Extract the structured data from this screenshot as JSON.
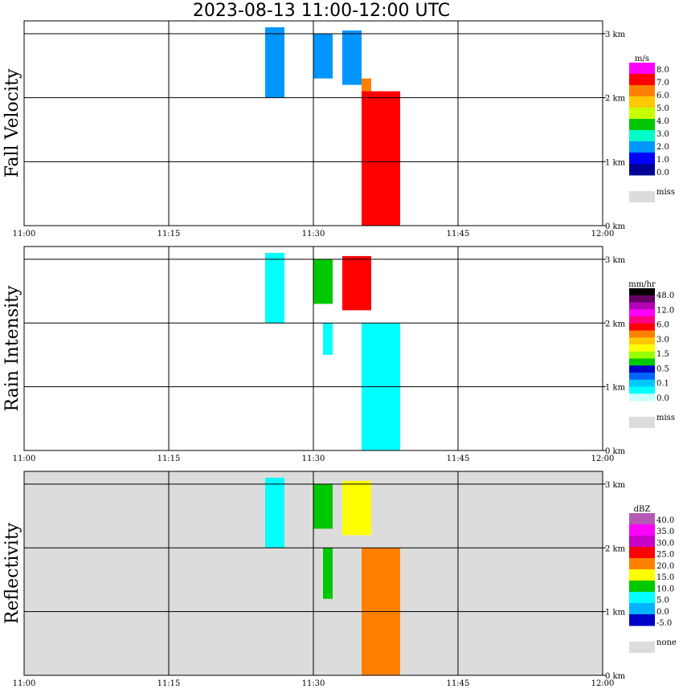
{
  "title": "2023-08-13  11:00-12:00 UTC",
  "chart_data": [
    {
      "type": "heatmap",
      "ylabel": "Fall Velocity",
      "x_ticks": [
        "11:00",
        "11:15",
        "11:30",
        "11:45",
        "12:00"
      ],
      "y_ticks": [
        "0 km",
        "1 km",
        "2 km",
        "3 km"
      ],
      "xlim": [
        "11:00",
        "12:00"
      ],
      "ylim_km": [
        0,
        3.2
      ],
      "background": "#ffffff",
      "legend": {
        "unit": "m/s",
        "labels": [
          "8.0",
          "7.0",
          "6.0",
          "5.0",
          "4.0",
          "3.0",
          "2.0",
          "1.0",
          "0.0"
        ],
        "colors": [
          "#ff00ff",
          "#ff0000",
          "#ff8000",
          "#ffc800",
          "#c8ff00",
          "#00c800",
          "#00ffc8",
          "#0096ff",
          "#0000ff",
          "#000096"
        ],
        "missing_label": "miss",
        "missing_color": "#dcdcdc"
      },
      "features": [
        {
          "x_start": "11:25",
          "x_end": "11:27",
          "y_top_km": 3.1,
          "y_bottom_km": 2.0,
          "color": "#0096ff"
        },
        {
          "x_start": "11:30",
          "x_end": "11:32",
          "y_top_km": 3.0,
          "y_bottom_km": 2.3,
          "color": "#0096ff"
        },
        {
          "x_start": "11:33",
          "x_end": "11:35",
          "y_top_km": 3.05,
          "y_bottom_km": 2.2,
          "color": "#0096ff"
        },
        {
          "x_start": "11:35",
          "x_end": "11:36",
          "y_top_km": 2.3,
          "y_bottom_km": 1.2,
          "color": "#ff8000"
        },
        {
          "x_start": "11:35",
          "x_end": "11:39",
          "y_top_km": 2.1,
          "y_bottom_km": 0.0,
          "color": "#ff0000"
        }
      ]
    },
    {
      "type": "heatmap",
      "ylabel": "Rain Intensity",
      "x_ticks": [
        "11:00",
        "11:15",
        "11:30",
        "11:45",
        "12:00"
      ],
      "y_ticks": [
        "0 km",
        "1 km",
        "2 km",
        "3 km"
      ],
      "xlim": [
        "11:00",
        "12:00"
      ],
      "ylim_km": [
        0,
        3.2
      ],
      "background": "#ffffff",
      "legend": {
        "unit": "mm/hr",
        "labels": [
          "48.0",
          "12.0",
          "6.0",
          "3.0",
          "1.5",
          "0.5",
          "0.1",
          "0.0"
        ],
        "colors": [
          "#000000",
          "#640064",
          "#b400b4",
          "#ff00ff",
          "#ff0080",
          "#ff0000",
          "#ff8000",
          "#ffc800",
          "#ffff00",
          "#96ff00",
          "#00c800",
          "#0000c8",
          "#0064ff",
          "#00c8ff",
          "#00ffff",
          "#c8ffff"
        ],
        "missing_label": "miss",
        "missing_color": "#dcdcdc"
      },
      "features": [
        {
          "x_start": "11:25",
          "x_end": "11:27",
          "y_top_km": 3.1,
          "y_bottom_km": 2.0,
          "color": "#00ffff"
        },
        {
          "x_start": "11:30",
          "x_end": "11:32",
          "y_top_km": 3.0,
          "y_bottom_km": 2.3,
          "color": "#00c800"
        },
        {
          "x_start": "11:33",
          "x_end": "11:36",
          "y_top_km": 3.05,
          "y_bottom_km": 2.2,
          "color": "#ff0000"
        },
        {
          "x_start": "11:31",
          "x_end": "11:32",
          "y_top_km": 2.0,
          "y_bottom_km": 1.5,
          "color": "#00ffff"
        },
        {
          "x_start": "11:35",
          "x_end": "11:39",
          "y_top_km": 2.0,
          "y_bottom_km": 0.0,
          "color": "#00ffff"
        }
      ]
    },
    {
      "type": "heatmap",
      "ylabel": "Reflectivity",
      "x_ticks": [
        "11:00",
        "11:15",
        "11:30",
        "11:45",
        "12:00"
      ],
      "y_ticks": [
        "0 km",
        "1 km",
        "2 km",
        "3 km"
      ],
      "xlim": [
        "11:00",
        "12:00"
      ],
      "ylim_km": [
        0,
        3.2
      ],
      "background": "#dcdcdc",
      "legend": {
        "unit": "dBZ",
        "labels": [
          "40.0",
          "35.0",
          "30.0",
          "25.0",
          "20.0",
          "15.0",
          "10.0",
          "5.0",
          "0.0",
          "-5.0"
        ],
        "colors": [
          "#b45ab4",
          "#ff00ff",
          "#c800c8",
          "#ff0000",
          "#ff8000",
          "#ffff00",
          "#00c800",
          "#00ffff",
          "#00b4ff",
          "#0000c8"
        ],
        "missing_label": "none",
        "missing_color": "#dcdcdc"
      },
      "features": [
        {
          "x_start": "11:25",
          "x_end": "11:27",
          "y_top_km": 3.1,
          "y_bottom_km": 2.0,
          "color": "#00ffff"
        },
        {
          "x_start": "11:30",
          "x_end": "11:32",
          "y_top_km": 3.0,
          "y_bottom_km": 2.3,
          "color": "#00c800"
        },
        {
          "x_start": "11:33",
          "x_end": "11:36",
          "y_top_km": 3.05,
          "y_bottom_km": 2.2,
          "color": "#ffff00"
        },
        {
          "x_start": "11:31",
          "x_end": "11:32",
          "y_top_km": 2.0,
          "y_bottom_km": 1.2,
          "color": "#00c800"
        },
        {
          "x_start": "11:35",
          "x_end": "11:39",
          "y_top_km": 2.0,
          "y_bottom_km": 0.0,
          "color": "#ff8000"
        }
      ]
    }
  ]
}
